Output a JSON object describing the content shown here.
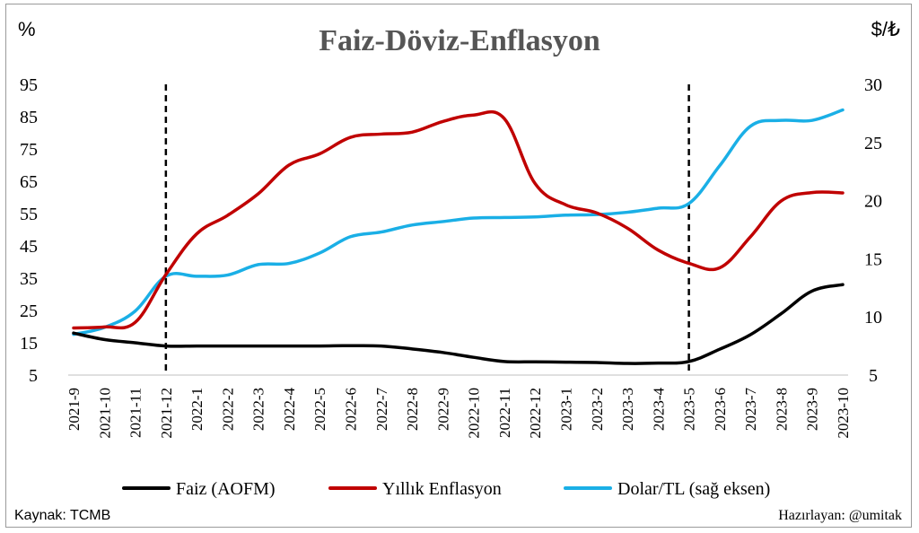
{
  "chart_data": {
    "type": "line",
    "title": "Faiz-Döviz-Enflasyon",
    "left_axis_unit": "%",
    "right_axis_unit": "$/₺",
    "categories": [
      "2021-9",
      "2021-10",
      "2021-11",
      "2021-12",
      "2022-1",
      "2022-2",
      "2022-3",
      "2022-4",
      "2022-5",
      "2022-6",
      "2022-7",
      "2022-8",
      "2022-9",
      "2022-10",
      "2022-11",
      "2022-12",
      "2023-1",
      "2023-2",
      "2023-3",
      "2023-4",
      "2023-5",
      "2023-6",
      "2023-7",
      "2023-8",
      "2023-9",
      "2023-10"
    ],
    "left_axis": {
      "min": 5,
      "max": 95,
      "ticks": [
        "5",
        "15",
        "25",
        "35",
        "45",
        "55",
        "65",
        "75",
        "85",
        "95"
      ]
    },
    "right_axis": {
      "min": 5,
      "max": 30,
      "ticks": [
        "5",
        "10",
        "15",
        "20",
        "25",
        "30"
      ]
    },
    "series": [
      {
        "name": "Faiz (AOFM)",
        "axis": "left",
        "color": "#000000",
        "values": [
          18.0,
          16.0,
          15.0,
          14.0,
          14.0,
          14.0,
          14.0,
          14.0,
          14.0,
          14.1,
          14.0,
          13.1,
          12.0,
          10.5,
          9.2,
          9.1,
          9.0,
          8.9,
          8.6,
          8.7,
          9.2,
          13.0,
          17.5,
          24.0,
          31.0,
          33.0
        ]
      },
      {
        "name": "Yıllık Enflasyon",
        "axis": "left",
        "color": "#c00000",
        "values": [
          19.6,
          19.9,
          21.3,
          36.1,
          48.7,
          54.4,
          61.1,
          70.0,
          73.5,
          78.6,
          79.6,
          80.2,
          83.5,
          85.5,
          84.4,
          64.3,
          57.7,
          55.2,
          50.5,
          43.7,
          39.6,
          38.2,
          47.8,
          58.9,
          61.5,
          61.4
        ]
      },
      {
        "name": "Dolar/TL (sağ eksen)",
        "axis": "right",
        "color": "#1aafe6",
        "values": [
          8.5,
          9.1,
          10.5,
          13.5,
          13.5,
          13.6,
          14.5,
          14.6,
          15.5,
          16.9,
          17.3,
          17.9,
          18.2,
          18.5,
          18.55,
          18.6,
          18.75,
          18.8,
          19.0,
          19.35,
          19.75,
          23.0,
          26.4,
          26.9,
          26.9,
          27.8
        ]
      }
    ],
    "vertical_markers": [
      "2021-12",
      "2023-5"
    ],
    "legend_position": "bottom",
    "grid": false
  },
  "footer": {
    "source": "Kaynak: TCMB",
    "author": "Hazırlayan: @umitak"
  }
}
